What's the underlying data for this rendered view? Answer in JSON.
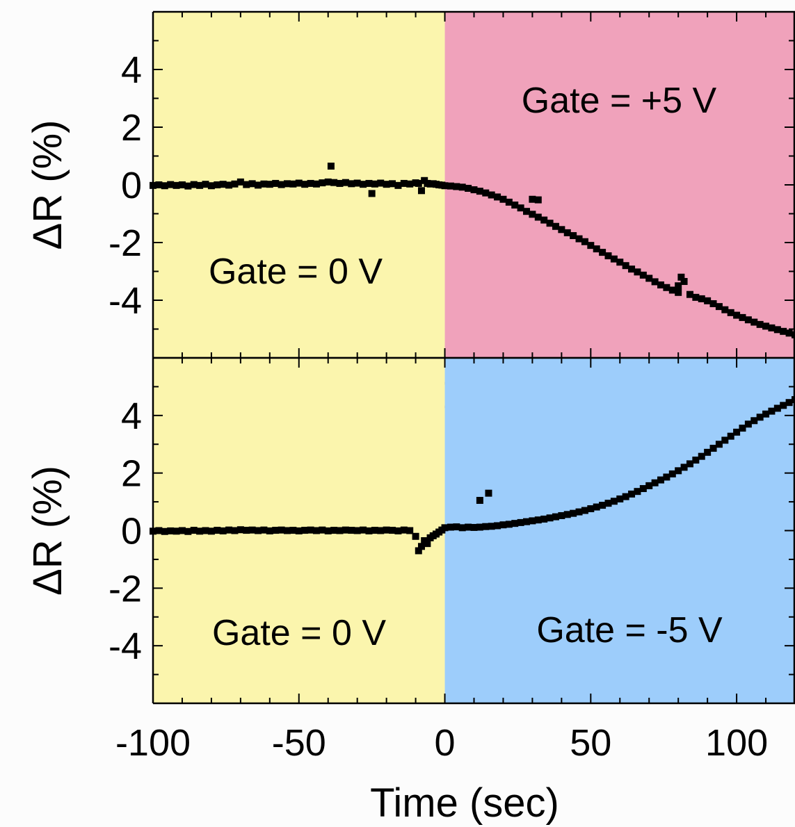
{
  "chart_data": [
    {
      "type": "scatter",
      "panel": "top",
      "ylabel": "ΔR (%)",
      "xlim": [
        -100,
        120
      ],
      "ylim": [
        -6,
        6
      ],
      "yticks": [
        -4,
        -2,
        0,
        2,
        4
      ],
      "xticks": [
        -50,
        0,
        50,
        100
      ],
      "x_tick_labels_inside": true,
      "regions": [
        {
          "x_from": -100,
          "x_to": 0,
          "color": "#fbf5ad",
          "label": "Gate = 0 V"
        },
        {
          "x_from": 0,
          "x_to": 120,
          "color": "#f0a2bb",
          "label": "Gate = +5 V"
        }
      ],
      "points": [
        [
          -100,
          -0.02
        ],
        [
          -98,
          0.0
        ],
        [
          -96,
          -0.03
        ],
        [
          -94,
          0.01
        ],
        [
          -92,
          -0.02
        ],
        [
          -90,
          0.0
        ],
        [
          -88,
          -0.04
        ],
        [
          -86,
          0.01
        ],
        [
          -84,
          -0.02
        ],
        [
          -82,
          0.02
        ],
        [
          -80,
          -0.03
        ],
        [
          -78,
          0.0
        ],
        [
          -76,
          0.02
        ],
        [
          -74,
          -0.01
        ],
        [
          -72,
          0.03
        ],
        [
          -70,
          0.1
        ],
        [
          -68,
          0.01
        ],
        [
          -66,
          0.04
        ],
        [
          -64,
          -0.01
        ],
        [
          -62,
          0.03
        ],
        [
          -60,
          0.02
        ],
        [
          -58,
          0.05
        ],
        [
          -56,
          0.01
        ],
        [
          -54,
          0.04
        ],
        [
          -52,
          0.03
        ],
        [
          -50,
          0.06
        ],
        [
          -48,
          0.02
        ],
        [
          -46,
          0.05
        ],
        [
          -44,
          0.03
        ],
        [
          -42,
          0.07
        ],
        [
          -40,
          0.1
        ],
        [
          -39,
          0.65
        ],
        [
          -38,
          0.08
        ],
        [
          -36,
          0.05
        ],
        [
          -34,
          0.08
        ],
        [
          -32,
          0.04
        ],
        [
          -30,
          0.06
        ],
        [
          -28,
          0.02
        ],
        [
          -26,
          0.05
        ],
        [
          -25,
          -0.3
        ],
        [
          -24,
          0.03
        ],
        [
          -22,
          0.06
        ],
        [
          -20,
          0.02
        ],
        [
          -18,
          0.04
        ],
        [
          -16,
          -0.02
        ],
        [
          -14,
          0.05
        ],
        [
          -12,
          0.03
        ],
        [
          -10,
          0.07
        ],
        [
          -9,
          0.05
        ],
        [
          -8,
          -0.2
        ],
        [
          -7,
          0.15
        ],
        [
          -6,
          0.05
        ],
        [
          -5,
          0.03
        ],
        [
          -4,
          0.04
        ],
        [
          -3,
          0.02
        ],
        [
          -2,
          0.0
        ],
        [
          -1,
          -0.01
        ],
        [
          0,
          -0.03
        ],
        [
          2,
          -0.04
        ],
        [
          4,
          -0.06
        ],
        [
          6,
          -0.08
        ],
        [
          8,
          -0.12
        ],
        [
          10,
          -0.17
        ],
        [
          12,
          -0.22
        ],
        [
          14,
          -0.28
        ],
        [
          16,
          -0.35
        ],
        [
          18,
          -0.42
        ],
        [
          20,
          -0.5
        ],
        [
          22,
          -0.6
        ],
        [
          24,
          -0.7
        ],
        [
          26,
          -0.8
        ],
        [
          28,
          -0.92
        ],
        [
          30,
          -0.5
        ],
        [
          32,
          -0.52
        ],
        [
          30,
          -1.02
        ],
        [
          32,
          -1.12
        ],
        [
          34,
          -1.22
        ],
        [
          36,
          -1.33
        ],
        [
          38,
          -1.44
        ],
        [
          40,
          -1.55
        ],
        [
          42,
          -1.66
        ],
        [
          44,
          -1.76
        ],
        [
          46,
          -1.87
        ],
        [
          48,
          -1.97
        ],
        [
          50,
          -2.1
        ],
        [
          52,
          -2.22
        ],
        [
          54,
          -2.34
        ],
        [
          56,
          -2.46
        ],
        [
          58,
          -2.57
        ],
        [
          60,
          -2.68
        ],
        [
          62,
          -2.8
        ],
        [
          64,
          -2.92
        ],
        [
          66,
          -3.02
        ],
        [
          68,
          -3.13
        ],
        [
          70,
          -3.24
        ],
        [
          72,
          -3.36
        ],
        [
          74,
          -3.47
        ],
        [
          76,
          -3.56
        ],
        [
          78,
          -3.65
        ],
        [
          80,
          -3.73
        ],
        [
          81,
          -3.2
        ],
        [
          82,
          -3.35
        ],
        [
          80,
          -3.5
        ],
        [
          84,
          -3.8
        ],
        [
          86,
          -3.9
        ],
        [
          88,
          -3.95
        ],
        [
          90,
          -4.02
        ],
        [
          92,
          -4.12
        ],
        [
          94,
          -4.22
        ],
        [
          96,
          -4.33
        ],
        [
          98,
          -4.43
        ],
        [
          100,
          -4.52
        ],
        [
          102,
          -4.6
        ],
        [
          104,
          -4.68
        ],
        [
          106,
          -4.76
        ],
        [
          108,
          -4.84
        ],
        [
          110,
          -4.9
        ],
        [
          112,
          -4.96
        ],
        [
          114,
          -5.02
        ],
        [
          116,
          -5.08
        ],
        [
          118,
          -5.14
        ],
        [
          120,
          -5.2
        ]
      ]
    },
    {
      "type": "scatter",
      "panel": "bottom",
      "xlabel": "Time (sec)",
      "ylabel": "ΔR (%)",
      "xlim": [
        -100,
        120
      ],
      "ylim": [
        -6,
        6
      ],
      "yticks": [
        -4,
        -2,
        0,
        2,
        4
      ],
      "xticks": [
        -100,
        -50,
        0,
        50,
        100
      ],
      "regions": [
        {
          "x_from": -100,
          "x_to": 0,
          "color": "#fbf5ad",
          "label": "Gate = 0 V"
        },
        {
          "x_from": 0,
          "x_to": 120,
          "color": "#9dcdfb",
          "label": "Gate = -5 V"
        }
      ],
      "points": [
        [
          -100,
          -0.02
        ],
        [
          -98,
          0.0
        ],
        [
          -96,
          -0.03
        ],
        [
          -94,
          -0.01
        ],
        [
          -92,
          -0.02
        ],
        [
          -90,
          0.0
        ],
        [
          -88,
          -0.03
        ],
        [
          -86,
          0.01
        ],
        [
          -84,
          -0.02
        ],
        [
          -82,
          0.0
        ],
        [
          -80,
          -0.02
        ],
        [
          -78,
          0.01
        ],
        [
          -76,
          -0.01
        ],
        [
          -74,
          0.02
        ],
        [
          -72,
          0.0
        ],
        [
          -70,
          0.03
        ],
        [
          -68,
          0.01
        ],
        [
          -66,
          0.02
        ],
        [
          -64,
          0.0
        ],
        [
          -62,
          0.02
        ],
        [
          -60,
          -0.01
        ],
        [
          -58,
          0.01
        ],
        [
          -56,
          0.02
        ],
        [
          -54,
          0.0
        ],
        [
          -52,
          0.01
        ],
        [
          -50,
          -0.01
        ],
        [
          -48,
          0.01
        ],
        [
          -46,
          0.02
        ],
        [
          -44,
          0.0
        ],
        [
          -42,
          0.02
        ],
        [
          -40,
          -0.01
        ],
        [
          -38,
          0.01
        ],
        [
          -36,
          0.0
        ],
        [
          -34,
          0.02
        ],
        [
          -32,
          0.01
        ],
        [
          -30,
          0.0
        ],
        [
          -28,
          0.02
        ],
        [
          -26,
          -0.01
        ],
        [
          -24,
          0.01
        ],
        [
          -22,
          0.0
        ],
        [
          -20,
          0.02
        ],
        [
          -18,
          0.01
        ],
        [
          -16,
          -0.01
        ],
        [
          -14,
          0.02
        ],
        [
          -12,
          0.0
        ],
        [
          -10,
          -0.2
        ],
        [
          -9,
          -0.7
        ],
        [
          -8,
          -0.55
        ],
        [
          -7,
          -0.35
        ],
        [
          -6,
          -0.45
        ],
        [
          -5,
          -0.25
        ],
        [
          -4,
          -0.18
        ],
        [
          -3,
          -0.12
        ],
        [
          -2,
          -0.05
        ],
        [
          -1,
          0.02
        ],
        [
          0,
          0.1
        ],
        [
          2,
          0.12
        ],
        [
          4,
          0.13
        ],
        [
          6,
          0.1
        ],
        [
          8,
          0.12
        ],
        [
          10,
          0.11
        ],
        [
          12,
          1.05
        ],
        [
          15,
          1.3
        ],
        [
          12,
          0.12
        ],
        [
          14,
          0.14
        ],
        [
          16,
          0.15
        ],
        [
          18,
          0.17
        ],
        [
          20,
          0.2
        ],
        [
          22,
          0.22
        ],
        [
          24,
          0.25
        ],
        [
          26,
          0.28
        ],
        [
          28,
          0.31
        ],
        [
          30,
          0.34
        ],
        [
          32,
          0.37
        ],
        [
          34,
          0.4
        ],
        [
          36,
          0.44
        ],
        [
          38,
          0.48
        ],
        [
          40,
          0.52
        ],
        [
          42,
          0.56
        ],
        [
          44,
          0.6
        ],
        [
          46,
          0.65
        ],
        [
          48,
          0.7
        ],
        [
          50,
          0.76
        ],
        [
          52,
          0.82
        ],
        [
          54,
          0.88
        ],
        [
          56,
          0.95
        ],
        [
          58,
          1.02
        ],
        [
          60,
          1.1
        ],
        [
          62,
          1.18
        ],
        [
          64,
          1.27
        ],
        [
          66,
          1.36
        ],
        [
          68,
          1.46
        ],
        [
          70,
          1.56
        ],
        [
          72,
          1.66
        ],
        [
          74,
          1.76
        ],
        [
          76,
          1.86
        ],
        [
          78,
          1.97
        ],
        [
          80,
          2.08
        ],
        [
          82,
          2.2
        ],
        [
          84,
          2.32
        ],
        [
          86,
          2.45
        ],
        [
          88,
          2.58
        ],
        [
          90,
          2.72
        ],
        [
          92,
          2.86
        ],
        [
          94,
          3.0
        ],
        [
          96,
          3.14
        ],
        [
          98,
          3.28
        ],
        [
          100,
          3.42
        ],
        [
          102,
          3.56
        ],
        [
          104,
          3.7
        ],
        [
          106,
          3.82
        ],
        [
          108,
          3.94
        ],
        [
          110,
          4.05
        ],
        [
          112,
          4.15
        ],
        [
          114,
          4.25
        ],
        [
          116,
          4.35
        ],
        [
          118,
          4.45
        ],
        [
          120,
          4.55
        ]
      ]
    }
  ]
}
